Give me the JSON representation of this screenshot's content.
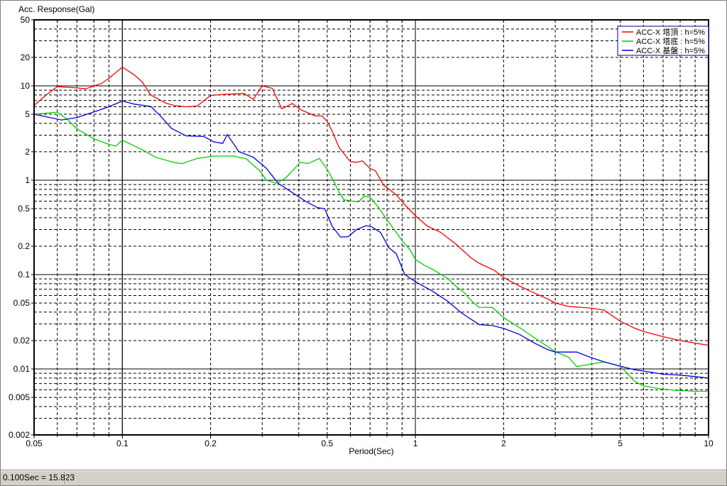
{
  "window": {
    "background": "#ffffff"
  },
  "status_bar": {
    "text": "0.100Sec = 15.823"
  },
  "chart_data": {
    "type": "line",
    "title": "Acc. Response(Gal)",
    "xlabel": "Period(Sec)",
    "ylabel": "Acc. Response(Gal)",
    "x_scale": "log",
    "y_scale": "log",
    "xlim": [
      0.05,
      10
    ],
    "ylim": [
      0.002,
      50
    ],
    "grid": {
      "minor": "dashed",
      "major": "solid",
      "color": "#000000"
    },
    "x_ticks": [
      {
        "v": 0.05,
        "label": "0.05"
      },
      {
        "v": 0.1,
        "label": "0.1"
      },
      {
        "v": 0.2,
        "label": "0.2"
      },
      {
        "v": 0.5,
        "label": "0.5"
      },
      {
        "v": 1,
        "label": "1"
      },
      {
        "v": 2,
        "label": "2"
      },
      {
        "v": 5,
        "label": "5"
      },
      {
        "v": 10,
        "label": "10"
      }
    ],
    "y_ticks": [
      {
        "v": 50,
        "label": "50"
      },
      {
        "v": 20,
        "label": "20"
      },
      {
        "v": 10,
        "label": "10"
      },
      {
        "v": 5,
        "label": "5"
      },
      {
        "v": 2,
        "label": "2"
      },
      {
        "v": 1,
        "label": "1"
      },
      {
        "v": 0.5,
        "label": "0.5"
      },
      {
        "v": 0.2,
        "label": "0.2"
      },
      {
        "v": 0.1,
        "label": "0.1"
      },
      {
        "v": 0.05,
        "label": "0.05"
      },
      {
        "v": 0.02,
        "label": "0.02"
      },
      {
        "v": 0.01,
        "label": "0.01"
      },
      {
        "v": 0.005,
        "label": "0.005"
      },
      {
        "v": 0.002,
        "label": "0.002"
      }
    ],
    "legend": {
      "position": "top-right",
      "border_color": "#000080",
      "entries": [
        {
          "label": "ACC-X 塔頂 : h=5%",
          "color": "#ff0000"
        },
        {
          "label": "ACC-X 塔底 : h=5%",
          "color": "#00d000"
        },
        {
          "label": "ACC-X 基盤 : h=5%",
          "color": "#0000e0"
        }
      ]
    },
    "cursor": {
      "x": 0.1,
      "unit": "Sec",
      "readout": 15.823
    },
    "series": [
      {
        "name": "ACC-X 塔頂 : h=5%",
        "color": "#ff0000",
        "x": [
          0.05,
          0.055,
          0.06,
          0.07,
          0.075,
          0.085,
          0.09,
          0.1,
          0.11,
          0.117,
          0.125,
          0.14,
          0.15,
          0.165,
          0.18,
          0.2,
          0.22,
          0.26,
          0.28,
          0.3,
          0.325,
          0.35,
          0.38,
          0.41,
          0.455,
          0.48,
          0.5,
          0.52,
          0.55,
          0.6,
          0.63,
          0.66,
          0.7,
          0.73,
          0.78,
          0.81,
          0.86,
          0.92,
          1.0,
          1.1,
          1.22,
          1.37,
          1.55,
          1.65,
          1.86,
          2.0,
          2.26,
          2.54,
          2.83,
          3.0,
          3.33,
          4.0,
          4.4,
          5.0,
          5.6,
          6.0,
          7.0,
          8.0,
          9.0,
          10.0
        ],
        "y": [
          6.2,
          8.0,
          9.8,
          9.5,
          9.3,
          10.6,
          12.0,
          15.823,
          13.0,
          11.0,
          8.0,
          6.6,
          6.2,
          6.0,
          6.1,
          7.9,
          8.1,
          8.3,
          7.2,
          10.0,
          9.4,
          5.7,
          6.5,
          5.5,
          4.8,
          4.8,
          4.2,
          3.3,
          2.2,
          1.57,
          1.55,
          1.6,
          1.33,
          1.26,
          0.88,
          0.81,
          0.7,
          0.55,
          0.42,
          0.325,
          0.28,
          0.212,
          0.15,
          0.132,
          0.111,
          0.093,
          0.076,
          0.064,
          0.055,
          0.05,
          0.046,
          0.044,
          0.042,
          0.032,
          0.027,
          0.025,
          0.022,
          0.02,
          0.0188,
          0.0178
        ]
      },
      {
        "name": "ACC-X 塔底 : h=5%",
        "color": "#00d000",
        "x": [
          0.05,
          0.06,
          0.065,
          0.07,
          0.08,
          0.09,
          0.095,
          0.1,
          0.117,
          0.13,
          0.15,
          0.16,
          0.18,
          0.205,
          0.24,
          0.265,
          0.295,
          0.31,
          0.335,
          0.36,
          0.38,
          0.405,
          0.43,
          0.47,
          0.5,
          0.52,
          0.55,
          0.57,
          0.61,
          0.64,
          0.67,
          0.7,
          0.75,
          0.79,
          0.86,
          0.9,
          0.96,
          1.0,
          1.07,
          1.16,
          1.3,
          1.37,
          1.47,
          1.55,
          1.65,
          1.83,
          2.0,
          2.3,
          2.6,
          3.0,
          3.33,
          3.55,
          4.0,
          4.4,
          5.0,
          5.6,
          6.0,
          7.0,
          8.0,
          9.0,
          10.0
        ],
        "y": [
          5.0,
          5.25,
          4.4,
          3.5,
          2.75,
          2.4,
          2.3,
          2.65,
          2.1,
          1.75,
          1.54,
          1.5,
          1.7,
          1.8,
          1.8,
          1.68,
          1.25,
          1.0,
          0.93,
          1.05,
          1.25,
          1.55,
          1.5,
          1.7,
          1.3,
          1.05,
          0.74,
          0.62,
          0.6,
          0.59,
          0.68,
          0.66,
          0.51,
          0.4,
          0.28,
          0.23,
          0.182,
          0.145,
          0.126,
          0.111,
          0.089,
          0.076,
          0.064,
          0.053,
          0.045,
          0.0448,
          0.035,
          0.0266,
          0.0205,
          0.0153,
          0.0133,
          0.0106,
          0.0113,
          0.0119,
          0.0107,
          0.0074,
          0.0066,
          0.0061,
          0.0059,
          0.0058,
          0.0058
        ]
      },
      {
        "name": "ACC-X 基盤 : h=5%",
        "color": "#0000e0",
        "x": [
          0.05,
          0.062,
          0.07,
          0.08,
          0.09,
          0.1,
          0.11,
          0.125,
          0.135,
          0.147,
          0.165,
          0.19,
          0.205,
          0.22,
          0.228,
          0.25,
          0.28,
          0.31,
          0.34,
          0.38,
          0.425,
          0.465,
          0.49,
          0.52,
          0.555,
          0.59,
          0.63,
          0.68,
          0.71,
          0.76,
          0.81,
          0.86,
          0.92,
          1.0,
          1.14,
          1.28,
          1.44,
          1.65,
          1.83,
          2.0,
          2.26,
          2.54,
          2.83,
          3.0,
          3.3,
          3.55,
          3.95,
          4.4,
          5.0,
          5.6,
          6.0,
          7.0,
          8.0,
          9.0,
          10.0
        ],
        "y": [
          5.0,
          4.35,
          4.6,
          5.3,
          6.0,
          6.9,
          6.4,
          6.05,
          4.8,
          3.55,
          2.95,
          2.9,
          2.55,
          2.45,
          3.05,
          2.0,
          1.75,
          1.34,
          0.93,
          0.74,
          0.59,
          0.51,
          0.5,
          0.325,
          0.25,
          0.252,
          0.3,
          0.33,
          0.32,
          0.28,
          0.194,
          0.166,
          0.1,
          0.084,
          0.067,
          0.053,
          0.039,
          0.0295,
          0.0288,
          0.0269,
          0.0233,
          0.0189,
          0.016,
          0.0151,
          0.0151,
          0.0151,
          0.0133,
          0.0119,
          0.0107,
          0.0098,
          0.0095,
          0.0088,
          0.0086,
          0.0083,
          0.008
        ]
      }
    ]
  }
}
